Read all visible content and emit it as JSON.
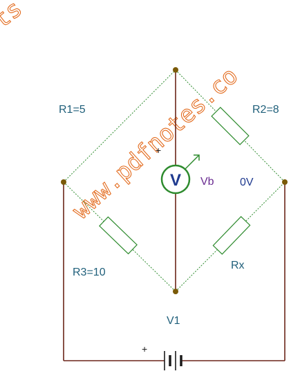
{
  "watermark": {
    "url_text": "www.pdfnotes.co",
    "corner_text": "ts"
  },
  "circuit": {
    "r1_label": "R1=5",
    "r2_label": "R2=8",
    "r3_label": "R3=10",
    "rx_label": "Rx",
    "meter_symbol": "V",
    "meter_name": "Vb",
    "meter_reading": "0V",
    "source_label": "V1",
    "meter_plus": "+",
    "battery_plus": "+"
  },
  "colors": {
    "wire": "#6b2418",
    "resistor_link": "#2e8b2e",
    "label_text": "#1f5f7a",
    "meter_ring": "#2e8b2e",
    "meter_name": "#6a2c91",
    "reading": "#1f3a8f",
    "watermark": "#e36a1c"
  }
}
